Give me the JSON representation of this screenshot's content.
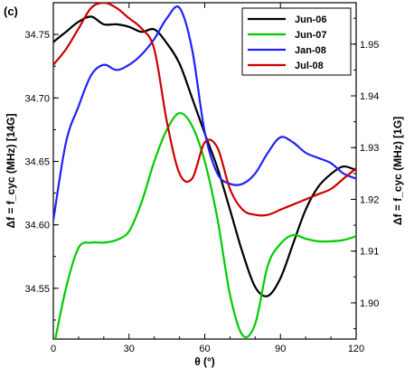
{
  "panel_label": "(c)",
  "chart_data": {
    "type": "line",
    "xlabel": "θ (°)",
    "ylabel_left": "Δf = f_cyc (MHz) [14G]",
    "ylabel_right": "Δf = f_cyc (MHz) [1G]",
    "xlim": [
      0,
      120
    ],
    "ylim_left": [
      34.51,
      34.775
    ],
    "ylim_right": [
      1.893,
      1.958
    ],
    "x_ticks": [
      0,
      30,
      60,
      90,
      120
    ],
    "y_ticks_left": [
      34.55,
      34.6,
      34.65,
      34.7,
      34.75
    ],
    "y_ticks_right": [
      1.9,
      1.91,
      1.92,
      1.93,
      1.94,
      1.95
    ],
    "legend_position": "top-right",
    "series": [
      {
        "name": "Jun-06",
        "color": "#000000",
        "axis": "left",
        "x": [
          0,
          5,
          10,
          15,
          20,
          25,
          30,
          35,
          40,
          45,
          50,
          55,
          60,
          65,
          70,
          75,
          80,
          85,
          90,
          95,
          100,
          105,
          110,
          115,
          120
        ],
        "y": [
          34.744,
          34.752,
          34.76,
          34.764,
          34.758,
          34.758,
          34.756,
          34.752,
          34.754,
          34.743,
          34.727,
          34.7,
          34.672,
          34.645,
          34.612,
          34.578,
          34.551,
          34.544,
          34.558,
          34.585,
          34.612,
          34.63,
          34.64,
          34.646,
          34.643
        ]
      },
      {
        "name": "Jun-07",
        "color": "#00cc00",
        "axis": "left",
        "x": [
          0,
          5,
          10,
          15,
          20,
          25,
          30,
          35,
          40,
          45,
          50,
          55,
          60,
          65,
          70,
          75,
          80,
          85,
          90,
          95,
          100,
          105,
          110,
          115,
          120
        ],
        "y": [
          34.502,
          34.55,
          34.582,
          34.586,
          34.586,
          34.588,
          34.595,
          34.618,
          34.65,
          34.675,
          34.688,
          34.678,
          34.65,
          34.605,
          34.545,
          34.513,
          34.522,
          34.568,
          34.585,
          34.592,
          34.589,
          34.587,
          34.587,
          34.588,
          34.591
        ]
      },
      {
        "name": "Jan-08",
        "color": "#2020ff",
        "axis": "right",
        "x": [
          0,
          5,
          10,
          15,
          20,
          25,
          30,
          35,
          40,
          45,
          50,
          55,
          60,
          65,
          70,
          75,
          80,
          85,
          90,
          95,
          100,
          105,
          110,
          115,
          120
        ],
        "y": [
          1.916,
          1.931,
          1.938,
          1.944,
          1.946,
          1.945,
          1.946,
          1.948,
          1.951,
          1.955,
          1.957,
          1.949,
          1.933,
          1.925,
          1.923,
          1.923,
          1.925,
          1.929,
          1.932,
          1.931,
          1.929,
          1.928,
          1.927,
          1.925,
          1.924
        ]
      },
      {
        "name": "Jul-08",
        "color": "#cc0000",
        "axis": "right",
        "x": [
          0,
          5,
          10,
          15,
          20,
          25,
          30,
          35,
          40,
          45,
          50,
          55,
          60,
          65,
          70,
          75,
          80,
          85,
          90,
          95,
          100,
          105,
          110,
          115,
          120
        ],
        "y": [
          1.946,
          1.949,
          1.953,
          1.957,
          1.958,
          1.957,
          1.955,
          1.953,
          1.949,
          1.935,
          1.925,
          1.924,
          1.931,
          1.93,
          1.922,
          1.918,
          1.917,
          1.917,
          1.918,
          1.919,
          1.92,
          1.921,
          1.922,
          1.924,
          1.926
        ]
      }
    ]
  }
}
